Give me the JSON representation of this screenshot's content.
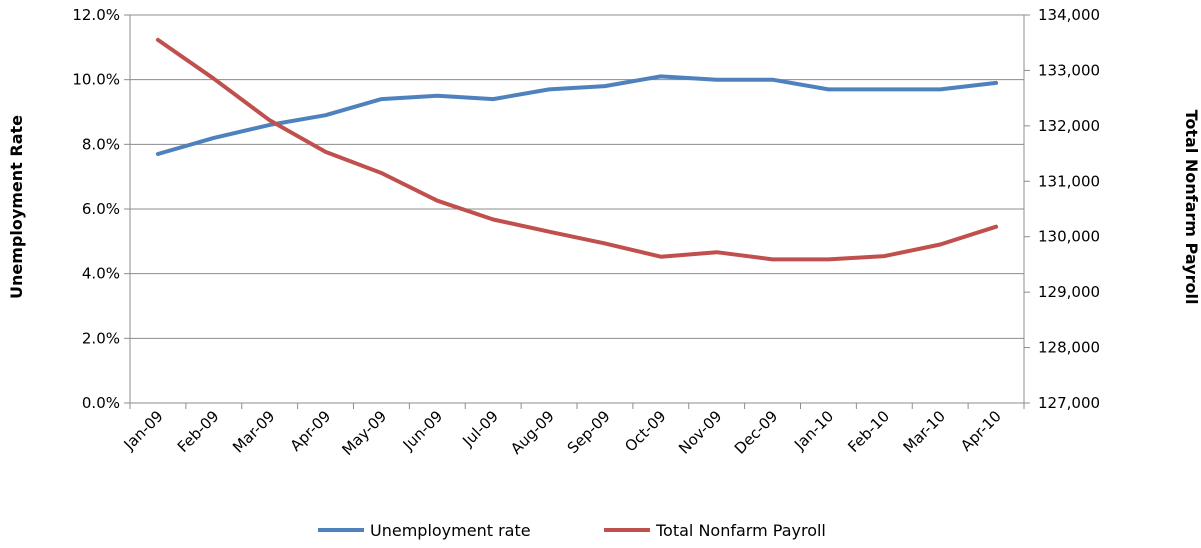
{
  "chart_data": {
    "type": "line",
    "x": [
      "Jan-09",
      "Feb-09",
      "Mar-09",
      "Apr-09",
      "May-09",
      "Jun-09",
      "Jul-09",
      "Aug-09",
      "Sep-09",
      "Oct-09",
      "Nov-09",
      "Dec-09",
      "Jan-10",
      "Feb-10",
      "Mar-10",
      "Apr-10"
    ],
    "series": [
      {
        "name": "Unemployment rate",
        "axis": "left",
        "color": "#4f81bd",
        "values": [
          7.7,
          8.2,
          8.6,
          8.9,
          9.4,
          9.5,
          9.4,
          9.7,
          9.8,
          10.1,
          10.0,
          10.0,
          9.7,
          9.7,
          9.7,
          9.9
        ]
      },
      {
        "name": "Total Nonfarm Payroll",
        "axis": "right",
        "color": "#c0504d",
        "values": [
          133550,
          132850,
          132100,
          131530,
          131150,
          130650,
          130310,
          130090,
          129880,
          129640,
          129720,
          129590,
          129590,
          129650,
          129860,
          130180
        ]
      }
    ],
    "y_left": {
      "label": "Unemployment Rate",
      "range": [
        0,
        12
      ],
      "ticks": [
        0,
        2,
        4,
        6,
        8,
        10,
        12
      ],
      "tick_labels": [
        "0.0%",
        "2.0%",
        "4.0%",
        "6.0%",
        "8.0%",
        "10.0%",
        "12.0%"
      ]
    },
    "y_right": {
      "label": "Total Nonfarm Payroll",
      "range": [
        127000,
        134000
      ],
      "ticks": [
        127000,
        128000,
        129000,
        130000,
        131000,
        132000,
        133000,
        134000
      ],
      "tick_labels": [
        "127,000",
        "128,000",
        "129,000",
        "130,000",
        "131,000",
        "132,000",
        "133,000",
        "134,000"
      ]
    },
    "grid": true,
    "legend": "bottom"
  }
}
